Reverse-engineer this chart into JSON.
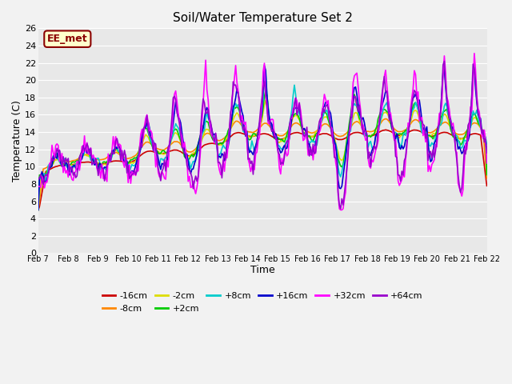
{
  "title": "Soil/Water Temperature Set 2",
  "xlabel": "Time",
  "ylabel": "Temperature (C)",
  "annotation": "EE_met",
  "ylim": [
    0,
    26
  ],
  "yticks": [
    0,
    2,
    4,
    6,
    8,
    10,
    12,
    14,
    16,
    18,
    20,
    22,
    24,
    26
  ],
  "x_labels": [
    "Feb 7",
    "Feb 8",
    "Feb 9",
    "Feb 10",
    "Feb 11",
    "Feb 12",
    "Feb 13",
    "Feb 14",
    "Feb 15",
    "Feb 16",
    "Feb 17",
    "Feb 18",
    "Feb 19",
    "Feb 20",
    "Feb 21",
    "Feb 22"
  ],
  "series": {
    "-16cm": {
      "color": "#cc0000"
    },
    "-8cm": {
      "color": "#ff8800"
    },
    "-2cm": {
      "color": "#dddd00"
    },
    "+2cm": {
      "color": "#00cc00"
    },
    "+8cm": {
      "color": "#00cccc"
    },
    "+16cm": {
      "color": "#0000cc"
    },
    "+32cm": {
      "color": "#ff00ff"
    },
    "+64cm": {
      "color": "#9900cc"
    }
  },
  "lw": 1.2,
  "bg_color": "#e8e8e8",
  "grid_color": "#ffffff",
  "fig_bg": "#f2f2f2"
}
